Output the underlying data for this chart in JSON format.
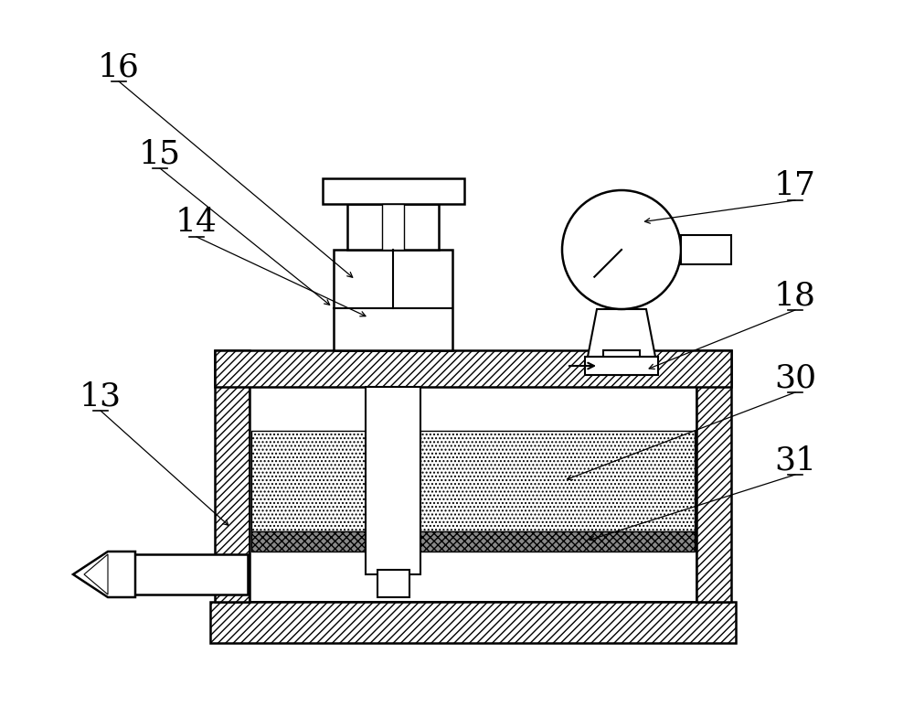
{
  "bg_color": "#ffffff",
  "line_color": "#000000",
  "figsize": [
    10.0,
    7.73
  ],
  "dpi": 100
}
